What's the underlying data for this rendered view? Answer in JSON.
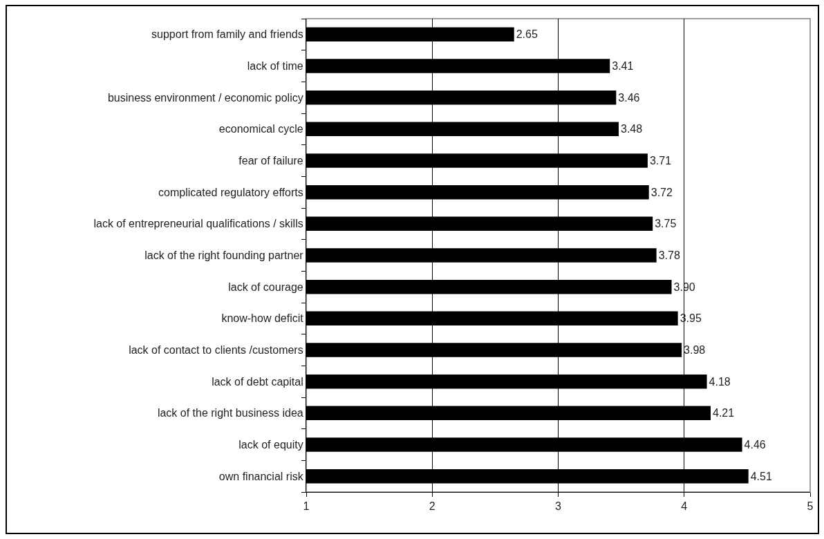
{
  "chart_data": {
    "type": "bar",
    "orientation": "horizontal",
    "categories": [
      "support from family and friends",
      "lack of time",
      "business environment / economic policy",
      "economical cycle",
      "fear of failure",
      "complicated regulatory efforts",
      "lack of entrepreneurial qualifications / skills",
      "lack of the right founding partner",
      "lack of courage",
      "know-how deficit",
      "lack of contact to clients /customers",
      "lack of debt capital",
      "lack of the right business idea",
      "lack of equity",
      "own financial risk"
    ],
    "values": [
      2.65,
      3.41,
      3.46,
      3.48,
      3.71,
      3.72,
      3.75,
      3.78,
      3.9,
      3.95,
      3.98,
      4.18,
      4.21,
      4.46,
      4.51
    ],
    "value_labels": [
      "2.65",
      "3.41",
      "3.46",
      "3.48",
      "3.71",
      "3.72",
      "3.75",
      "3.78",
      "3.90",
      "3.95",
      "3.98",
      "4.18",
      "4.21",
      "4.46",
      "4.51"
    ],
    "color": "#000000",
    "xlim": [
      1,
      5
    ],
    "xticks": [
      1,
      2,
      3,
      4,
      5
    ],
    "grid": "x"
  }
}
